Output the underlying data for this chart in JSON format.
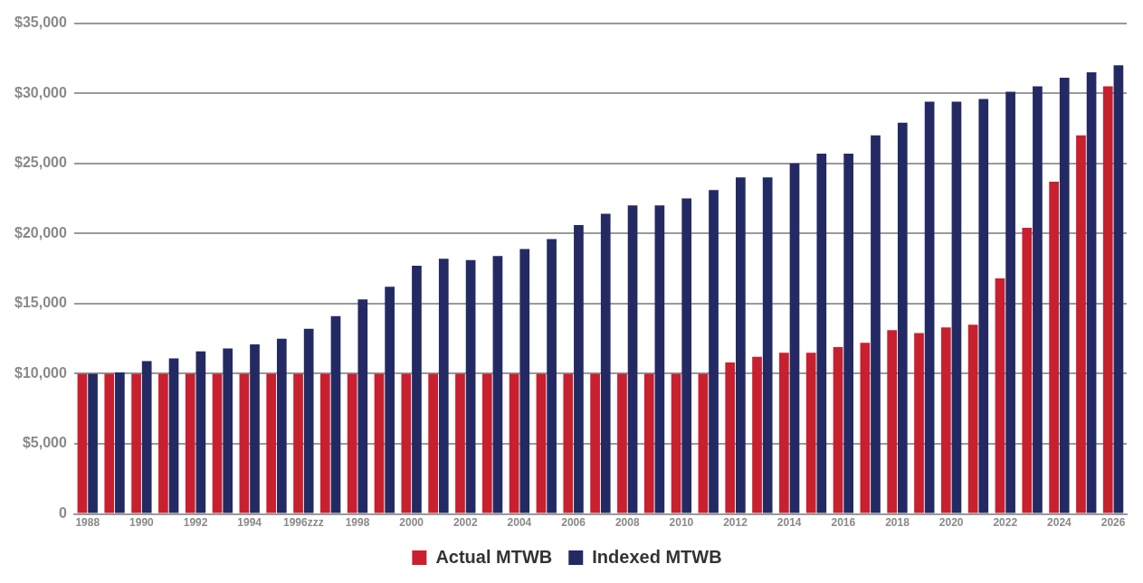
{
  "chart_data": {
    "type": "bar",
    "categories": [
      "1988",
      null,
      "1990",
      null,
      "1992",
      null,
      "1994",
      null,
      "1996zzz",
      null,
      "1998",
      null,
      "2000",
      null,
      "2002",
      null,
      "2004",
      null,
      "2006",
      null,
      "2008",
      null,
      "2010",
      null,
      "2012",
      null,
      "2014",
      null,
      "2016",
      null,
      "2018",
      null,
      "2020",
      null,
      "2022",
      null,
      "2024",
      null,
      "2026"
    ],
    "series": [
      {
        "name": "Actual MTWB",
        "color": "#c8202f",
        "values": [
          10000,
          10000,
          10000,
          10000,
          10000,
          10000,
          10000,
          10000,
          10000,
          10000,
          10000,
          10000,
          10000,
          10000,
          10000,
          10000,
          10000,
          10000,
          10000,
          10000,
          10000,
          10000,
          10000,
          10000,
          10800,
          11200,
          11500,
          11500,
          11900,
          12200,
          13100,
          12900,
          13300,
          13500,
          16800,
          20400,
          23700,
          27000,
          30500
        ]
      },
      {
        "name": "Indexed MTWB",
        "color": "#232a63",
        "values": [
          10000,
          10100,
          10900,
          11100,
          11600,
          11800,
          12100,
          12500,
          13200,
          14100,
          15300,
          16200,
          17700,
          18200,
          18100,
          18400,
          18900,
          19600,
          20600,
          21400,
          22000,
          22000,
          22500,
          23100,
          24000,
          24000,
          25000,
          25700,
          25700,
          27000,
          27900,
          29400,
          29400,
          29600,
          30100,
          30500,
          31100,
          31500,
          32000
        ]
      }
    ],
    "ylim": [
      0,
      35000
    ],
    "yticks": [
      {
        "value": 0,
        "label": "0"
      },
      {
        "value": 5000,
        "label": "$5,000"
      },
      {
        "value": 10000,
        "label": "$10,000"
      },
      {
        "value": 15000,
        "label": "$15,000"
      },
      {
        "value": 20000,
        "label": "$20,000"
      },
      {
        "value": 25000,
        "label": "$25,000"
      },
      {
        "value": 30000,
        "label": "$30,000"
      },
      {
        "value": 35000,
        "label": "$35,000"
      }
    ],
    "grid": "y",
    "legend": "bottom"
  }
}
